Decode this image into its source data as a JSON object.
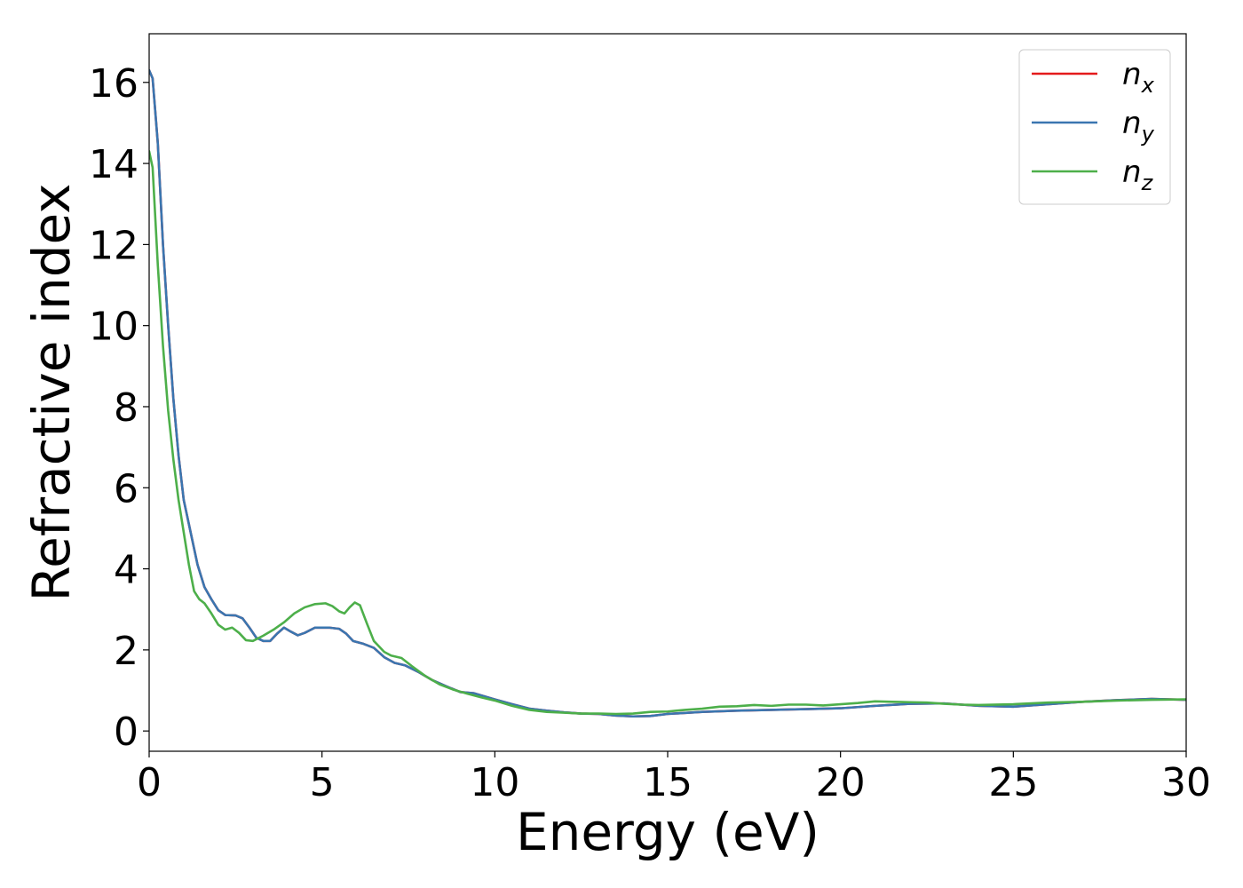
{
  "chart_data": {
    "type": "line",
    "title": "",
    "xlabel": "Energy (eV)",
    "ylabel": "Refractive index",
    "xlim": [
      0,
      30
    ],
    "ylim": [
      -0.5,
      17.2
    ],
    "xticks": [
      0,
      5,
      10,
      15,
      20,
      25,
      30
    ],
    "yticks": [
      0,
      2,
      4,
      6,
      8,
      10,
      12,
      14,
      16
    ],
    "grid": false,
    "legend_position": "top-right",
    "series": [
      {
        "name": "n_x",
        "label_base": "n",
        "label_sub": "x",
        "color": "#e41a1c",
        "points": [
          [
            0,
            16.3
          ],
          [
            0.1,
            16.1
          ],
          [
            0.25,
            14.5
          ],
          [
            0.4,
            12.0
          ],
          [
            0.55,
            10.0
          ],
          [
            0.7,
            8.2
          ],
          [
            0.85,
            6.8
          ],
          [
            1.0,
            5.7
          ],
          [
            1.2,
            4.9
          ],
          [
            1.4,
            4.1
          ],
          [
            1.6,
            3.55
          ],
          [
            1.8,
            3.25
          ],
          [
            2.0,
            2.98
          ],
          [
            2.2,
            2.86
          ],
          [
            2.5,
            2.85
          ],
          [
            2.7,
            2.78
          ],
          [
            2.9,
            2.55
          ],
          [
            3.1,
            2.3
          ],
          [
            3.3,
            2.22
          ],
          [
            3.5,
            2.22
          ],
          [
            3.7,
            2.4
          ],
          [
            3.9,
            2.55
          ],
          [
            4.1,
            2.45
          ],
          [
            4.3,
            2.36
          ],
          [
            4.5,
            2.42
          ],
          [
            4.8,
            2.55
          ],
          [
            5.2,
            2.55
          ],
          [
            5.5,
            2.52
          ],
          [
            5.7,
            2.4
          ],
          [
            5.9,
            2.22
          ],
          [
            6.2,
            2.15
          ],
          [
            6.5,
            2.05
          ],
          [
            6.8,
            1.82
          ],
          [
            7.1,
            1.68
          ],
          [
            7.4,
            1.62
          ],
          [
            7.8,
            1.45
          ],
          [
            8.2,
            1.25
          ],
          [
            8.6,
            1.1
          ],
          [
            9.0,
            0.96
          ],
          [
            9.4,
            0.93
          ],
          [
            10.0,
            0.78
          ],
          [
            10.5,
            0.66
          ],
          [
            11.0,
            0.55
          ],
          [
            11.5,
            0.5
          ],
          [
            12.0,
            0.46
          ],
          [
            12.5,
            0.43
          ],
          [
            13.0,
            0.42
          ],
          [
            13.5,
            0.38
          ],
          [
            14.0,
            0.36
          ],
          [
            14.5,
            0.37
          ],
          [
            15.0,
            0.42
          ],
          [
            16.0,
            0.47
          ],
          [
            17.0,
            0.5
          ],
          [
            18.0,
            0.52
          ],
          [
            19.0,
            0.54
          ],
          [
            20.0,
            0.56
          ],
          [
            21.0,
            0.62
          ],
          [
            22.0,
            0.67
          ],
          [
            23.0,
            0.68
          ],
          [
            24.0,
            0.62
          ],
          [
            25.0,
            0.6
          ],
          [
            26.0,
            0.66
          ],
          [
            27.0,
            0.72
          ],
          [
            28.0,
            0.76
          ],
          [
            29.0,
            0.79
          ],
          [
            30.0,
            0.77
          ]
        ]
      },
      {
        "name": "n_y",
        "label_base": "n",
        "label_sub": "y",
        "color": "#3a76b0",
        "points": [
          [
            0,
            16.3
          ],
          [
            0.1,
            16.1
          ],
          [
            0.25,
            14.5
          ],
          [
            0.4,
            12.0
          ],
          [
            0.55,
            10.0
          ],
          [
            0.7,
            8.2
          ],
          [
            0.85,
            6.8
          ],
          [
            1.0,
            5.7
          ],
          [
            1.2,
            4.9
          ],
          [
            1.4,
            4.1
          ],
          [
            1.6,
            3.55
          ],
          [
            1.8,
            3.25
          ],
          [
            2.0,
            2.98
          ],
          [
            2.2,
            2.86
          ],
          [
            2.5,
            2.85
          ],
          [
            2.7,
            2.78
          ],
          [
            2.9,
            2.55
          ],
          [
            3.1,
            2.3
          ],
          [
            3.3,
            2.22
          ],
          [
            3.5,
            2.22
          ],
          [
            3.7,
            2.4
          ],
          [
            3.9,
            2.55
          ],
          [
            4.1,
            2.45
          ],
          [
            4.3,
            2.36
          ],
          [
            4.5,
            2.42
          ],
          [
            4.8,
            2.55
          ],
          [
            5.2,
            2.55
          ],
          [
            5.5,
            2.52
          ],
          [
            5.7,
            2.4
          ],
          [
            5.9,
            2.22
          ],
          [
            6.2,
            2.15
          ],
          [
            6.5,
            2.05
          ],
          [
            6.8,
            1.82
          ],
          [
            7.1,
            1.68
          ],
          [
            7.4,
            1.62
          ],
          [
            7.8,
            1.45
          ],
          [
            8.2,
            1.25
          ],
          [
            8.6,
            1.1
          ],
          [
            9.0,
            0.96
          ],
          [
            9.4,
            0.93
          ],
          [
            10.0,
            0.78
          ],
          [
            10.5,
            0.66
          ],
          [
            11.0,
            0.55
          ],
          [
            11.5,
            0.5
          ],
          [
            12.0,
            0.46
          ],
          [
            12.5,
            0.43
          ],
          [
            13.0,
            0.42
          ],
          [
            13.5,
            0.38
          ],
          [
            14.0,
            0.36
          ],
          [
            14.5,
            0.37
          ],
          [
            15.0,
            0.42
          ],
          [
            16.0,
            0.47
          ],
          [
            17.0,
            0.5
          ],
          [
            18.0,
            0.52
          ],
          [
            19.0,
            0.54
          ],
          [
            20.0,
            0.56
          ],
          [
            21.0,
            0.62
          ],
          [
            22.0,
            0.67
          ],
          [
            23.0,
            0.68
          ],
          [
            24.0,
            0.62
          ],
          [
            25.0,
            0.6
          ],
          [
            26.0,
            0.66
          ],
          [
            27.0,
            0.72
          ],
          [
            28.0,
            0.76
          ],
          [
            29.0,
            0.79
          ],
          [
            30.0,
            0.77
          ]
        ]
      },
      {
        "name": "n_z",
        "label_base": "n",
        "label_sub": "z",
        "color": "#4daf4a",
        "points": [
          [
            0,
            14.3
          ],
          [
            0.1,
            13.9
          ],
          [
            0.25,
            11.5
          ],
          [
            0.4,
            9.5
          ],
          [
            0.55,
            7.9
          ],
          [
            0.7,
            6.7
          ],
          [
            0.85,
            5.7
          ],
          [
            1.0,
            4.9
          ],
          [
            1.15,
            4.1
          ],
          [
            1.3,
            3.45
          ],
          [
            1.45,
            3.25
          ],
          [
            1.6,
            3.15
          ],
          [
            1.8,
            2.9
          ],
          [
            2.0,
            2.62
          ],
          [
            2.2,
            2.5
          ],
          [
            2.4,
            2.55
          ],
          [
            2.6,
            2.42
          ],
          [
            2.8,
            2.24
          ],
          [
            3.0,
            2.22
          ],
          [
            3.3,
            2.35
          ],
          [
            3.6,
            2.5
          ],
          [
            3.9,
            2.68
          ],
          [
            4.2,
            2.9
          ],
          [
            4.5,
            3.05
          ],
          [
            4.8,
            3.13
          ],
          [
            5.1,
            3.15
          ],
          [
            5.3,
            3.08
          ],
          [
            5.5,
            2.95
          ],
          [
            5.65,
            2.9
          ],
          [
            5.8,
            3.05
          ],
          [
            5.95,
            3.17
          ],
          [
            6.1,
            3.1
          ],
          [
            6.3,
            2.65
          ],
          [
            6.5,
            2.22
          ],
          [
            6.8,
            1.95
          ],
          [
            7.0,
            1.86
          ],
          [
            7.3,
            1.8
          ],
          [
            7.6,
            1.6
          ],
          [
            8.0,
            1.35
          ],
          [
            8.4,
            1.15
          ],
          [
            8.8,
            1.02
          ],
          [
            9.2,
            0.92
          ],
          [
            9.6,
            0.83
          ],
          [
            10.0,
            0.75
          ],
          [
            10.5,
            0.62
          ],
          [
            11.0,
            0.52
          ],
          [
            11.5,
            0.47
          ],
          [
            12.0,
            0.45
          ],
          [
            12.5,
            0.43
          ],
          [
            13.0,
            0.43
          ],
          [
            13.5,
            0.42
          ],
          [
            14.0,
            0.43
          ],
          [
            14.5,
            0.47
          ],
          [
            15.0,
            0.48
          ],
          [
            15.5,
            0.52
          ],
          [
            16.0,
            0.55
          ],
          [
            16.5,
            0.6
          ],
          [
            17.0,
            0.61
          ],
          [
            17.5,
            0.64
          ],
          [
            18.0,
            0.62
          ],
          [
            18.5,
            0.65
          ],
          [
            19.0,
            0.65
          ],
          [
            19.5,
            0.63
          ],
          [
            20.0,
            0.66
          ],
          [
            20.5,
            0.69
          ],
          [
            21.0,
            0.73
          ],
          [
            21.5,
            0.72
          ],
          [
            22.0,
            0.71
          ],
          [
            22.5,
            0.7
          ],
          [
            23.0,
            0.67
          ],
          [
            23.5,
            0.65
          ],
          [
            24.0,
            0.64
          ],
          [
            25.0,
            0.66
          ],
          [
            26.0,
            0.7
          ],
          [
            27.0,
            0.72
          ],
          [
            28.0,
            0.75
          ],
          [
            29.0,
            0.77
          ],
          [
            30.0,
            0.78
          ]
        ]
      }
    ]
  }
}
